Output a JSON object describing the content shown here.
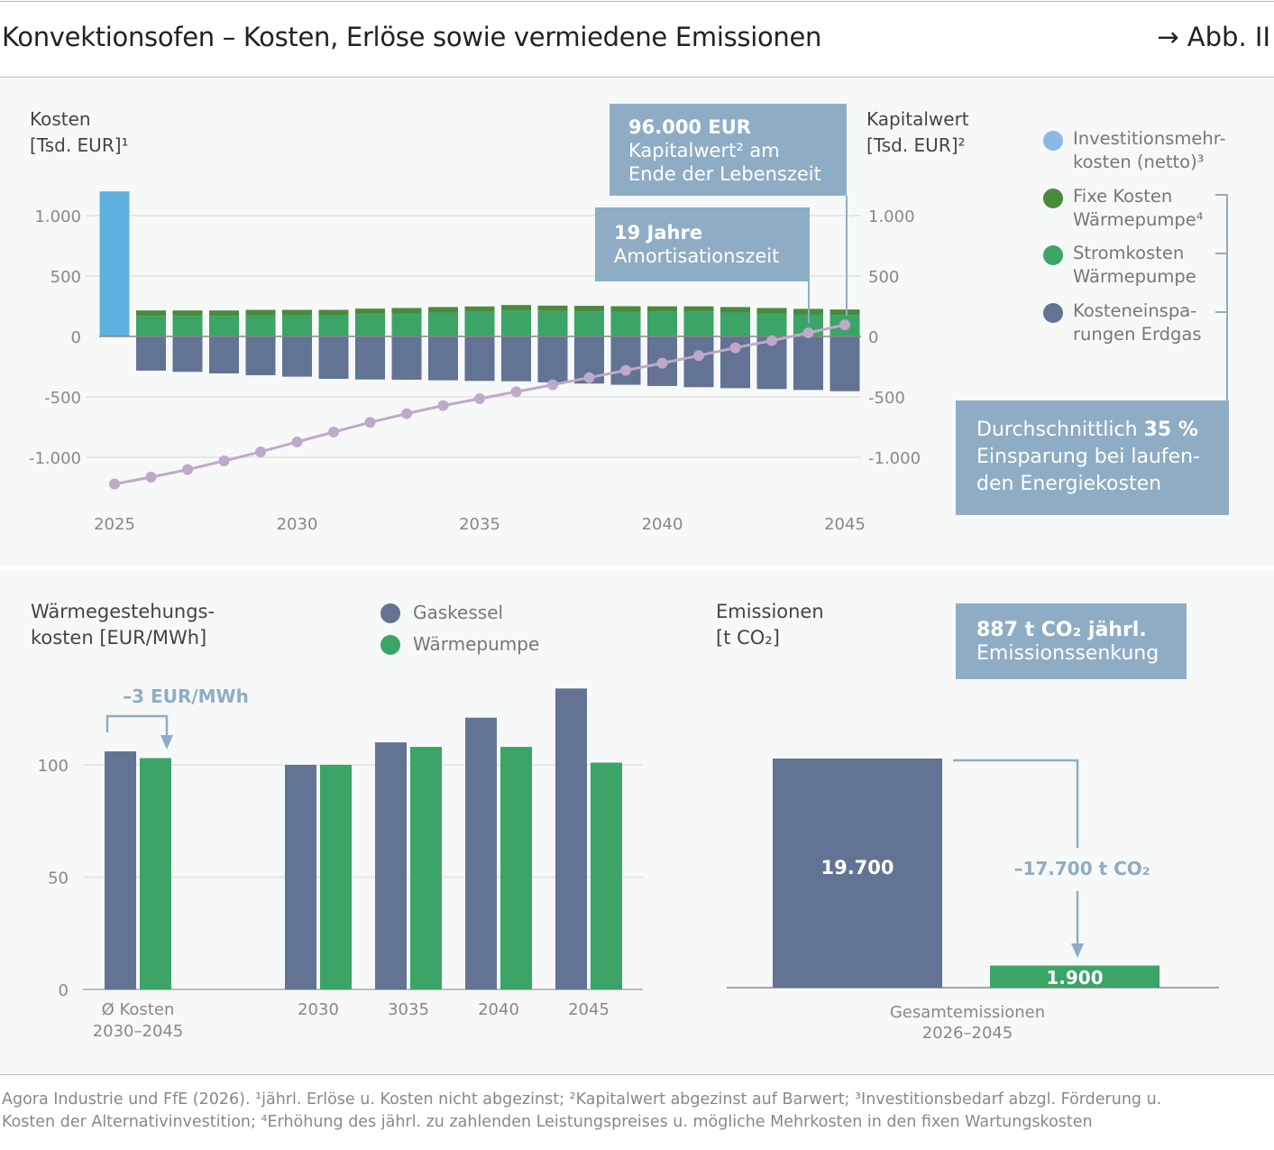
{
  "header": {
    "title": "Konvektionsofen – Kosten, Erlöse sowie vermiedene Emissionen",
    "figure_ref": "→ Abb. II"
  },
  "colors": {
    "invest": "#5eb1df",
    "fix": "#4a8a3c",
    "strom": "#3ba466",
    "savings": "#627394",
    "npv": "#c0a8cb",
    "annotation": "#8eadc5",
    "grid": "#e6e8e8"
  },
  "chart_data": [
    {
      "type": "bar",
      "subtype": "stacked bar with line",
      "ylabel_left": "Kosten [Tsd. EUR]¹",
      "ylabel_left_lines": [
        "Kosten",
        "[Tsd. EUR]¹"
      ],
      "ylabel_right_lines": [
        "Kapitalwert",
        "[Tsd. EUR]²"
      ],
      "ylim": [
        -1250,
        1250
      ],
      "yticks": [
        1000,
        500,
        0,
        -500,
        -1000
      ],
      "ytick_labels": [
        "1.000",
        "500",
        "0",
        "-500",
        "-1.000"
      ],
      "xticks": [
        2025,
        2030,
        2035,
        2040,
        2045
      ],
      "grid": true,
      "legend_position": "right",
      "legend": [
        {
          "label_lines": [
            "Investitionsmehr-",
            "kosten (netto)³"
          ],
          "color": "#8db8e6"
        },
        {
          "label_lines": [
            "Fixe Kosten",
            "Wärmepumpe⁴"
          ],
          "color": "#4a8a3c"
        },
        {
          "label_lines": [
            "Stromkosten",
            "Wärmepumpe"
          ],
          "color": "#3ba466"
        },
        {
          "label_lines": [
            "Kosteneinspa-",
            "rungen Erdgas"
          ],
          "color": "#627394"
        }
      ],
      "x": [
        2025,
        2026,
        2027,
        2028,
        2029,
        2030,
        2031,
        2032,
        2033,
        2034,
        2035,
        2036,
        2037,
        2038,
        2039,
        2040,
        2041,
        2042,
        2043,
        2044,
        2045
      ],
      "series": [
        {
          "name": "Investitionsmehrkosten (netto)",
          "values": [
            1200,
            0,
            0,
            0,
            0,
            0,
            0,
            0,
            0,
            0,
            0,
            0,
            0,
            0,
            0,
            0,
            0,
            0,
            0,
            0,
            0
          ]
        },
        {
          "name": "Stromkosten Wärmepumpe",
          "values": [
            0,
            170,
            170,
            170,
            175,
            175,
            175,
            185,
            190,
            198,
            203,
            215,
            210,
            208,
            205,
            204,
            204,
            198,
            190,
            183,
            178
          ]
        },
        {
          "name": "Fixe Kosten Wärmepumpe",
          "values": [
            0,
            45,
            45,
            45,
            45,
            45,
            45,
            45,
            45,
            45,
            45,
            45,
            45,
            45,
            45,
            45,
            45,
            45,
            45,
            45,
            45
          ]
        },
        {
          "name": "Kosteneinsparungen Erdgas",
          "values": [
            0,
            -283,
            -293,
            -306,
            -321,
            -333,
            -351,
            -356,
            -358,
            -363,
            -368,
            -371,
            -380,
            -390,
            -400,
            -410,
            -420,
            -428,
            -435,
            -443,
            -453
          ]
        },
        {
          "name": "Kapitalwert",
          "type": "line",
          "values": [
            -1221,
            -1164,
            -1102,
            -1030,
            -955,
            -873,
            -791,
            -711,
            -639,
            -572,
            -515,
            -458,
            -400,
            -341,
            -281,
            -221,
            -159,
            -94,
            -35,
            30,
            96
          ]
        }
      ],
      "annotations": [
        {
          "bold": "96.000 EUR",
          "text_lines": [
            "Kapitalwert² am",
            "Ende der Lebenszeit"
          ]
        },
        {
          "bold": "19 Jahre",
          "text_lines": [
            "Amortisationszeit"
          ]
        },
        {
          "text_prefix": "Durchschnittlich ",
          "bold": "35 %",
          "text_lines": [
            "Einsparung bei laufen-",
            "den Energiekosten"
          ]
        }
      ]
    },
    {
      "type": "bar",
      "ylabel_lines": [
        "Wärmegestehungs-",
        "kosten [EUR/MWh]"
      ],
      "ylim": [
        0,
        140
      ],
      "yticks": [
        0,
        50,
        100
      ],
      "grid": true,
      "legend_position": "top",
      "categories": [
        "Ø Kosten 2030–2045",
        "2030",
        "3035",
        "2040",
        "2045"
      ],
      "category_lines": [
        [
          "Ø Kosten",
          "2030–2045"
        ],
        [
          "2030"
        ],
        [
          "3035"
        ],
        [
          "2040"
        ],
        [
          "2045"
        ]
      ],
      "series": [
        {
          "name": "Gaskessel",
          "color": "#627394",
          "values": [
            106,
            100,
            110,
            121,
            134
          ]
        },
        {
          "name": "Wärmepumpe",
          "color": "#3ba466",
          "values": [
            103,
            100,
            108,
            108,
            101
          ]
        }
      ],
      "annotations": [
        {
          "text": "–3 EUR/MWh"
        }
      ]
    },
    {
      "type": "bar",
      "ylabel_lines": [
        "Emissionen",
        "[t CO₂]"
      ],
      "categories": [
        "Gesamtemissionen 2026–2045"
      ],
      "category_lines": [
        "Gesamtemissionen",
        "2026–2045"
      ],
      "series": [
        {
          "name": "Gaskessel",
          "color": "#627394",
          "value": 19700,
          "label": "19.700"
        },
        {
          "name": "Wärmepumpe",
          "color": "#3ba466",
          "value": 1900,
          "label": "1.900"
        }
      ],
      "annotations": [
        {
          "text": "–17.700 t CO₂"
        },
        {
          "bold": "887 t CO₂ jährl.",
          "text": "Emissionssenkung"
        }
      ]
    }
  ],
  "footer": {
    "lines": [
      "Agora Industrie und FfE (2026). ¹jährl. Erlöse u. Kosten nicht abgezinst; ²Kapitalwert abgezinst auf Barwert; ³Investitionsbedarf abzgl. Förderung u.",
      "Kosten der Alternativinvestition; ⁴Erhöhung des jährl. zu zahlenden Leistungspreises u. mögliche Mehrkosten in den fixen Wartungskosten"
    ]
  }
}
